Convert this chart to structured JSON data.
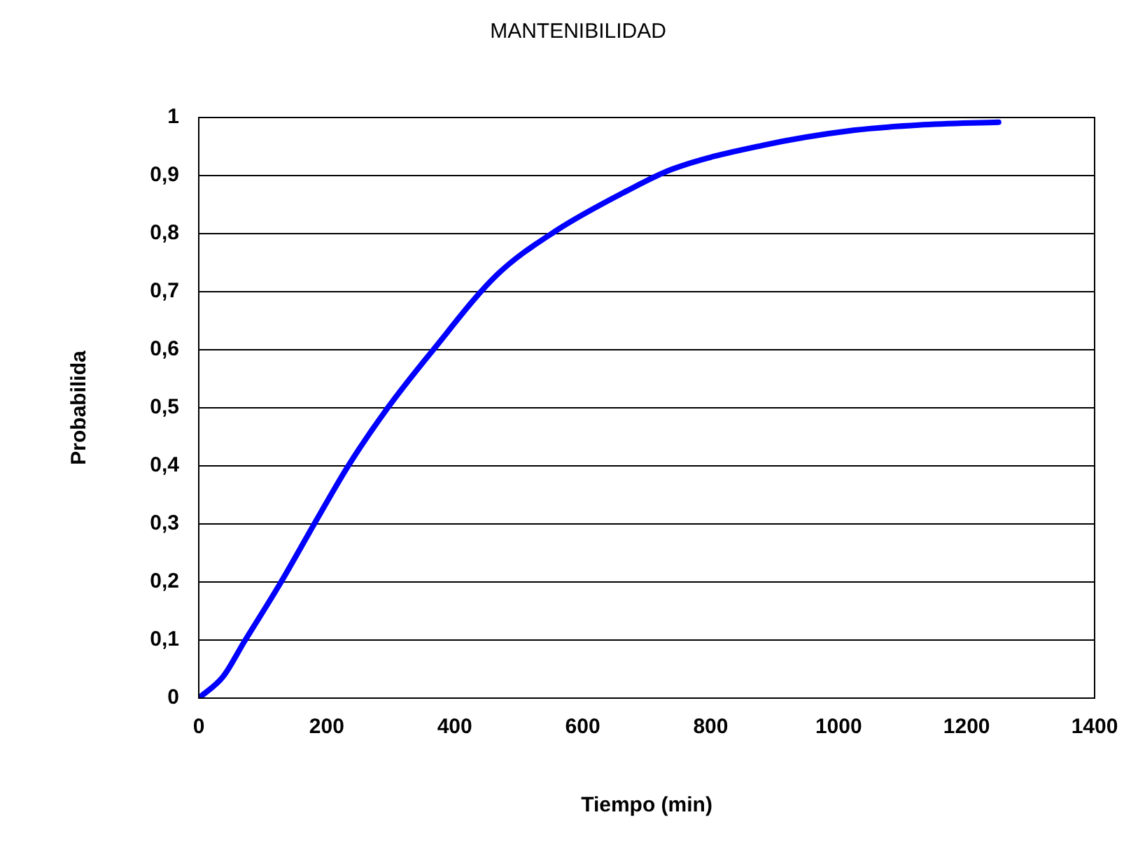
{
  "chart_data": {
    "type": "line",
    "title": "MANTENIBILIDAD",
    "xlabel": "Tiempo (min)",
    "ylabel": "Probabilida",
    "series": [
      {
        "color": "#0000ff",
        "x": [
          0,
          38,
          71,
          127,
          180,
          233,
          294,
          365,
          466,
          557,
          668,
          740,
          881,
          1023,
          1125,
          1250
        ],
        "values": [
          0,
          0.037,
          0.097,
          0.197,
          0.299,
          0.399,
          0.498,
          0.598,
          0.729,
          0.804,
          0.873,
          0.911,
          0.952,
          0.978,
          0.987,
          0.992
        ]
      }
    ],
    "xlim": [
      0,
      1400
    ],
    "xticks": [
      0,
      200,
      400,
      600,
      800,
      1000,
      1200,
      1400
    ],
    "ylim": [
      0,
      1
    ],
    "yticks": [
      0,
      {
        "value": 0.1,
        "label": "0,1"
      },
      {
        "value": 0.2,
        "label": "0,2"
      },
      {
        "value": 0.3,
        "label": "0,3"
      },
      {
        "value": 0.4,
        "label": "0,4"
      },
      {
        "value": 0.5,
        "label": "0,5"
      },
      {
        "value": 0.6,
        "label": "0,6"
      },
      {
        "value": 0.7,
        "label": "0,7"
      },
      {
        "value": 0.8,
        "label": "0,8"
      },
      {
        "value": 0.9,
        "label": "0,9"
      },
      1
    ],
    "grid": "y",
    "legend": false,
    "marker": "none",
    "line_style": "solid"
  }
}
